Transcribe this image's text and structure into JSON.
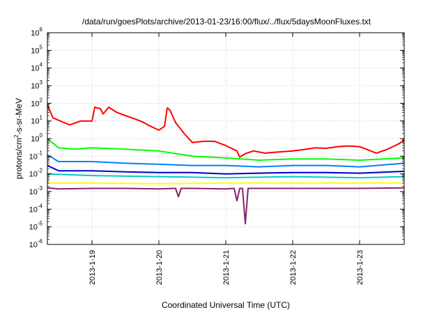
{
  "chart_data": {
    "type": "line",
    "title": "/data/run/goesPlots/archive/2013-01-23/16:00/flux/../flux/5daysMoonFluxes.txt",
    "xlabel": "Coordinated Universal Time (UTC)",
    "ylabel_parts": [
      "protons/cm",
      "2",
      "-s-sr-MeV"
    ],
    "x_domain": [
      "2013-01-18T08:00",
      "2013-01-23T16:00"
    ],
    "x_ticks": [
      "2013-1-19",
      "2013-1-20",
      "2013-1-21",
      "2013-1-22",
      "2013-1-23"
    ],
    "y_scale": "log",
    "y_ticks_exponents": [
      -6,
      -5,
      -4,
      -3,
      -2,
      -1,
      0,
      1,
      2,
      3,
      4,
      5,
      6
    ],
    "grid": true,
    "series": [
      {
        "color": "#ff0000",
        "points": [
          [
            "2013-01-18T08:00",
            80
          ],
          [
            "2013-01-18T10:00",
            15
          ],
          [
            "2013-01-18T14:00",
            8
          ],
          [
            "2013-01-18T16:00",
            6
          ],
          [
            "2013-01-18T20:00",
            10
          ],
          [
            "2013-01-19T00:00",
            10
          ],
          [
            "2013-01-19T01:00",
            60
          ],
          [
            "2013-01-19T03:00",
            50
          ],
          [
            "2013-01-19T04:00",
            25
          ],
          [
            "2013-01-19T06:00",
            60
          ],
          [
            "2013-01-19T09:00",
            30
          ],
          [
            "2013-01-19T12:00",
            20
          ],
          [
            "2013-01-19T16:00",
            12
          ],
          [
            "2013-01-19T18:00",
            9
          ],
          [
            "2013-01-19T20:00",
            6
          ],
          [
            "2013-01-20T00:00",
            3
          ],
          [
            "2013-01-20T02:00",
            5
          ],
          [
            "2013-01-20T03:00",
            55
          ],
          [
            "2013-01-20T04:00",
            40
          ],
          [
            "2013-01-20T06:00",
            8
          ],
          [
            "2013-01-20T09:00",
            2
          ],
          [
            "2013-01-20T12:00",
            0.6
          ],
          [
            "2013-01-20T16:00",
            0.7
          ],
          [
            "2013-01-20T20:00",
            0.7
          ],
          [
            "2013-01-21T00:00",
            0.4
          ],
          [
            "2013-01-21T04:00",
            0.2
          ],
          [
            "2013-01-21T05:00",
            0.09
          ],
          [
            "2013-01-21T07:00",
            0.14
          ],
          [
            "2013-01-21T10:00",
            0.2
          ],
          [
            "2013-01-21T14:00",
            0.15
          ],
          [
            "2013-01-21T18:00",
            0.17
          ],
          [
            "2013-01-22T00:00",
            0.2
          ],
          [
            "2013-01-22T04:00",
            0.24
          ],
          [
            "2013-01-22T08:00",
            0.3
          ],
          [
            "2013-01-22T12:00",
            0.28
          ],
          [
            "2013-01-22T16:00",
            0.35
          ],
          [
            "2013-01-22T20:00",
            0.38
          ],
          [
            "2013-01-23T00:00",
            0.35
          ],
          [
            "2013-01-23T04:00",
            0.2
          ],
          [
            "2013-01-23T06:00",
            0.15
          ],
          [
            "2013-01-23T10:00",
            0.25
          ],
          [
            "2013-01-23T14:00",
            0.5
          ],
          [
            "2013-01-23T16:00",
            0.8
          ]
        ]
      },
      {
        "color": "#00ff00",
        "points": [
          [
            "2013-01-18T08:00",
            1.0
          ],
          [
            "2013-01-18T12:00",
            0.3
          ],
          [
            "2013-01-18T18:00",
            0.25
          ],
          [
            "2013-01-19T00:00",
            0.3
          ],
          [
            "2013-01-19T12:00",
            0.25
          ],
          [
            "2013-01-20T00:00",
            0.2
          ],
          [
            "2013-01-20T12:00",
            0.1
          ],
          [
            "2013-01-21T00:00",
            0.08
          ],
          [
            "2013-01-21T12:00",
            0.06
          ],
          [
            "2013-01-22T00:00",
            0.07
          ],
          [
            "2013-01-22T12:00",
            0.07
          ],
          [
            "2013-01-23T00:00",
            0.06
          ],
          [
            "2013-01-23T16:00",
            0.08
          ]
        ]
      },
      {
        "color": "#0080ff",
        "points": [
          [
            "2013-01-18T08:00",
            0.12
          ],
          [
            "2013-01-18T12:00",
            0.05
          ],
          [
            "2013-01-19T00:00",
            0.05
          ],
          [
            "2013-01-19T12:00",
            0.04
          ],
          [
            "2013-01-20T00:00",
            0.035
          ],
          [
            "2013-01-20T12:00",
            0.03
          ],
          [
            "2013-01-21T00:00",
            0.03
          ],
          [
            "2013-01-21T12:00",
            0.025
          ],
          [
            "2013-01-22T00:00",
            0.03
          ],
          [
            "2013-01-22T12:00",
            0.03
          ],
          [
            "2013-01-23T00:00",
            0.025
          ],
          [
            "2013-01-23T16:00",
            0.04
          ]
        ]
      },
      {
        "color": "#0000cc",
        "points": [
          [
            "2013-01-18T08:00",
            0.03
          ],
          [
            "2013-01-18T12:00",
            0.015
          ],
          [
            "2013-01-19T00:00",
            0.015
          ],
          [
            "2013-01-19T12:00",
            0.013
          ],
          [
            "2013-01-20T00:00",
            0.012
          ],
          [
            "2013-01-20T12:00",
            0.012
          ],
          [
            "2013-01-21T00:00",
            0.01
          ],
          [
            "2013-01-21T12:00",
            0.011
          ],
          [
            "2013-01-22T00:00",
            0.012
          ],
          [
            "2013-01-22T12:00",
            0.012
          ],
          [
            "2013-01-23T00:00",
            0.011
          ],
          [
            "2013-01-23T16:00",
            0.014
          ]
        ]
      },
      {
        "color": "#00cccc",
        "points": [
          [
            "2013-01-18T08:00",
            0.01
          ],
          [
            "2013-01-19T00:00",
            0.008
          ],
          [
            "2013-01-20T00:00",
            0.007
          ],
          [
            "2013-01-21T00:00",
            0.006
          ],
          [
            "2013-01-22T00:00",
            0.007
          ],
          [
            "2013-01-23T00:00",
            0.006
          ],
          [
            "2013-01-23T16:00",
            0.007
          ]
        ]
      },
      {
        "color": "#ffff00",
        "points": [
          [
            "2013-01-18T08:00",
            0.003
          ],
          [
            "2013-01-19T00:00",
            0.003
          ],
          [
            "2013-01-20T00:00",
            0.0028
          ],
          [
            "2013-01-21T00:00",
            0.003
          ],
          [
            "2013-01-22T00:00",
            0.003
          ],
          [
            "2013-01-23T00:00",
            0.003
          ],
          [
            "2013-01-23T16:00",
            0.003
          ]
        ]
      },
      {
        "color": "#882266",
        "points": [
          [
            "2013-01-18T08:00",
            0.0016
          ],
          [
            "2013-01-18T12:00",
            0.0014
          ],
          [
            "2013-01-19T00:00",
            0.0015
          ],
          [
            "2013-01-19T12:00",
            0.0015
          ],
          [
            "2013-01-20T00:00",
            0.0014
          ],
          [
            "2013-01-20T06:00",
            0.0015
          ],
          [
            "2013-01-20T07:00",
            0.0005
          ],
          [
            "2013-01-20T08:00",
            0.0015
          ],
          [
            "2013-01-20T12:00",
            0.0015
          ],
          [
            "2013-01-21T00:00",
            0.0014
          ],
          [
            "2013-01-21T03:00",
            0.0015
          ],
          [
            "2013-01-21T04:00",
            0.0003
          ],
          [
            "2013-01-21T05:00",
            0.0015
          ],
          [
            "2013-01-21T06:00",
            0.0015
          ],
          [
            "2013-01-21T07:00",
            1.5e-05
          ],
          [
            "2013-01-21T08:00",
            0.0015
          ],
          [
            "2013-01-22T00:00",
            0.0015
          ],
          [
            "2013-01-23T00:00",
            0.0015
          ],
          [
            "2013-01-23T16:00",
            0.0016
          ]
        ]
      }
    ]
  }
}
